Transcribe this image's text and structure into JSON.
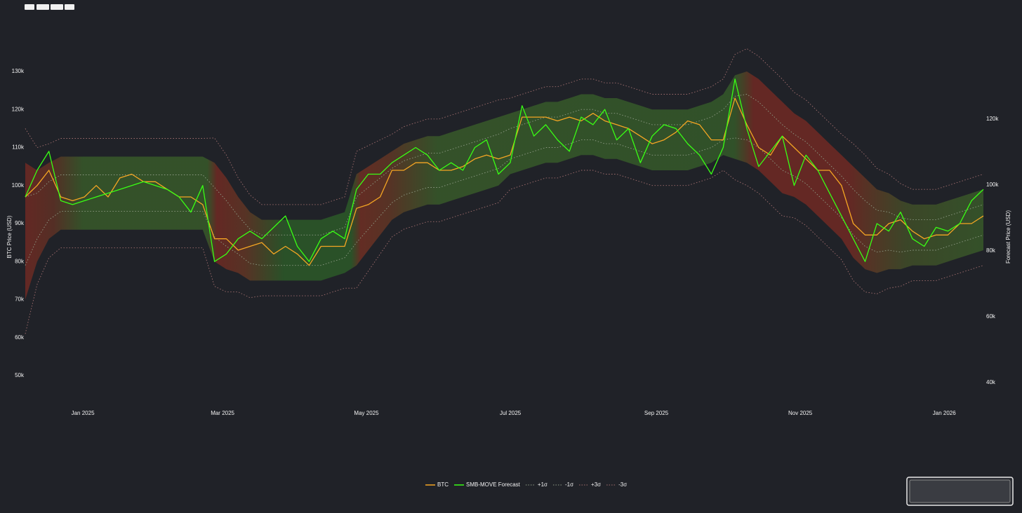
{
  "chart_data": {
    "type": "line",
    "ylabel": "BTC Price (USD)",
    "y2label": "Forecast Price (USD)",
    "xlim": [
      0,
      81
    ],
    "xticks": [
      {
        "value": 4.87,
        "label": "Jan 2025"
      },
      {
        "value": 16.68,
        "label": "Mar 2025"
      },
      {
        "value": 28.84,
        "label": "May 2025"
      },
      {
        "value": 41.01,
        "label": "Jul 2025"
      },
      {
        "value": 53.35,
        "label": "Sep 2025"
      },
      {
        "value": 65.52,
        "label": "Nov 2025"
      },
      {
        "value": 77.69,
        "label": "Jan 2026"
      }
    ],
    "ylim": [
      43730,
      143270
    ],
    "yticks": [
      {
        "value": 50000,
        "label": "50k"
      },
      {
        "value": 60000,
        "label": "60k"
      },
      {
        "value": 70000,
        "label": "70k"
      },
      {
        "value": 80000,
        "label": "80k"
      },
      {
        "value": 90000,
        "label": "90k"
      },
      {
        "value": 100000,
        "label": "100k"
      },
      {
        "value": 110000,
        "label": "110k"
      },
      {
        "value": 120000,
        "label": "120k"
      },
      {
        "value": 130000,
        "label": "130k"
      }
    ],
    "y2lim": [
      34890,
      149790
    ],
    "y2ticks": [
      {
        "value": 40000,
        "label": "40k"
      },
      {
        "value": 60000,
        "label": "60k"
      },
      {
        "value": 80000,
        "label": "80k"
      },
      {
        "value": 100000,
        "label": "100k"
      },
      {
        "value": 120000,
        "label": "120k"
      }
    ],
    "grid": false,
    "legend": "bottom",
    "series": [
      {
        "name": "BTC",
        "color": "#f5a623",
        "line_style": "solid",
        "values": [
          97000,
          100000,
          104000,
          97000,
          96000,
          97000,
          100000,
          97000,
          102000,
          103000,
          101000,
          101000,
          99000,
          97000,
          97000,
          95000,
          86000,
          86000,
          83000,
          84000,
          85000,
          82000,
          84000,
          82000,
          79000,
          84000,
          84000,
          84000,
          94000,
          95000,
          97000,
          104000,
          104000,
          106000,
          106000,
          104000,
          104000,
          105000,
          107000,
          108000,
          107000,
          108000,
          118000,
          118000,
          118000,
          117000,
          118000,
          117000,
          119000,
          117000,
          116000,
          115000,
          113000,
          111000,
          112000,
          114000,
          117000,
          116000,
          112000,
          112000,
          123000,
          116000,
          110000,
          108000,
          113000,
          110000,
          107000,
          104000,
          104000,
          100000,
          90000,
          87000,
          87000,
          90000,
          91000,
          88000,
          86000,
          87000,
          87000,
          90000,
          90000,
          92000
        ]
      },
      {
        "name": "SMB-MOVE Forecast",
        "color": "#39ff14",
        "line_style": "solid",
        "values": [
          97000,
          104000,
          109000,
          96000,
          95000,
          96000,
          97000,
          98000,
          99000,
          100000,
          101000,
          100000,
          99000,
          97000,
          93000,
          100000,
          80000,
          82000,
          86000,
          88000,
          86000,
          89000,
          92000,
          84000,
          80000,
          86000,
          88000,
          86000,
          99000,
          103000,
          103000,
          106000,
          108000,
          110000,
          108000,
          104000,
          106000,
          104000,
          110000,
          112000,
          103000,
          106000,
          121000,
          113000,
          116000,
          112000,
          109000,
          118000,
          116000,
          120000,
          112000,
          115000,
          106000,
          113000,
          116000,
          115000,
          111000,
          108000,
          103000,
          110000,
          128000,
          115000,
          105000,
          109000,
          113000,
          100000,
          108000,
          104000,
          98000,
          92000,
          86000,
          80000,
          90000,
          88000,
          93000,
          86000,
          84000,
          89000,
          88000,
          90000,
          96000,
          99000
        ]
      },
      {
        "name": "+1σ",
        "color": "#8f9c86",
        "line_style": "dotted",
        "values": [
          97000,
          98000,
          101000,
          102800,
          102800,
          102800,
          102800,
          102800,
          102800,
          102800,
          102800,
          102800,
          102800,
          102800,
          102800,
          102800,
          99500,
          96000,
          92000,
          88500,
          87000,
          87000,
          87000,
          87000,
          87000,
          87000,
          88000,
          89000,
          97000,
          99500,
          102000,
          104500,
          106500,
          107500,
          108500,
          108500,
          109500,
          110500,
          111500,
          112500,
          113500,
          115000,
          116000,
          117000,
          118000,
          118000,
          119000,
          120000,
          120000,
          119000,
          119000,
          118000,
          117000,
          116000,
          116000,
          116000,
          116000,
          117000,
          118000,
          120000,
          123500,
          124000,
          122000,
          119000,
          116000,
          113500,
          111500,
          108500,
          105500,
          102500,
          99000,
          96000,
          93500,
          93000,
          91500,
          91000,
          91000,
          91000,
          92000,
          93000,
          94000,
          95000
        ]
      },
      {
        "name": "-1σ",
        "color": "#8f9c86",
        "line_style": "dotted",
        "values": [
          79000,
          86000,
          91000,
          93200,
          93200,
          93200,
          93200,
          93200,
          93200,
          93200,
          93200,
          93200,
          93200,
          93200,
          93200,
          93200,
          86500,
          84000,
          82000,
          79500,
          79000,
          79000,
          79000,
          79000,
          79000,
          79000,
          80000,
          81000,
          85000,
          88500,
          92000,
          95500,
          97500,
          98500,
          99500,
          99500,
          100500,
          101500,
          102500,
          103500,
          104500,
          107000,
          108000,
          109000,
          110000,
          110000,
          111000,
          112000,
          112000,
          111000,
          111000,
          110000,
          109000,
          108000,
          108000,
          108000,
          108000,
          109000,
          110000,
          112000,
          112500,
          112000,
          110000,
          107000,
          104000,
          102500,
          100500,
          97500,
          94500,
          91500,
          87000,
          84000,
          82500,
          83000,
          82500,
          83000,
          83000,
          83000,
          84000,
          85000,
          86000,
          87000
        ]
      },
      {
        "name": "+3σ",
        "color": "#a36f6f",
        "line_style": "dotted",
        "values": [
          115000,
          110000,
          111000,
          112400,
          112400,
          112400,
          112400,
          112400,
          112400,
          112400,
          112400,
          112400,
          112400,
          112400,
          112400,
          112400,
          112500,
          108000,
          102000,
          97500,
          95000,
          95000,
          95000,
          95000,
          95000,
          95000,
          96000,
          97000,
          109000,
          110500,
          112000,
          113500,
          115500,
          116500,
          117500,
          117500,
          118500,
          119500,
          120500,
          121500,
          122500,
          123000,
          124000,
          125000,
          126000,
          126000,
          127000,
          128000,
          128000,
          127000,
          127000,
          126000,
          125000,
          124000,
          124000,
          124000,
          124000,
          125000,
          126000,
          128000,
          134500,
          136000,
          134000,
          131000,
          128000,
          124500,
          122500,
          119500,
          116500,
          113500,
          111000,
          108000,
          104500,
          103000,
          100500,
          99000,
          99000,
          99000,
          100000,
          101000,
          102000,
          103000
        ]
      },
      {
        "name": "-3σ",
        "color": "#a36f6f",
        "line_style": "dotted",
        "values": [
          61000,
          74000,
          81000,
          83600,
          83600,
          83600,
          83600,
          83600,
          83600,
          83600,
          83600,
          83600,
          83600,
          83600,
          83600,
          83600,
          73500,
          72000,
          72000,
          70500,
          71000,
          71000,
          71000,
          71000,
          71000,
          71000,
          72000,
          73000,
          73000,
          77500,
          82000,
          86500,
          88500,
          89500,
          90500,
          90500,
          91500,
          92500,
          93500,
          94500,
          95500,
          99000,
          100000,
          101000,
          102000,
          102000,
          103000,
          104000,
          104000,
          103000,
          103000,
          102000,
          101000,
          100000,
          100000,
          100000,
          100000,
          101000,
          102000,
          104000,
          101500,
          100000,
          98000,
          95000,
          92000,
          91500,
          89500,
          86500,
          83500,
          80500,
          75000,
          72000,
          71500,
          73000,
          73500,
          75000,
          75000,
          75000,
          76000,
          77000,
          78000,
          79000
        ]
      }
    ]
  }
}
